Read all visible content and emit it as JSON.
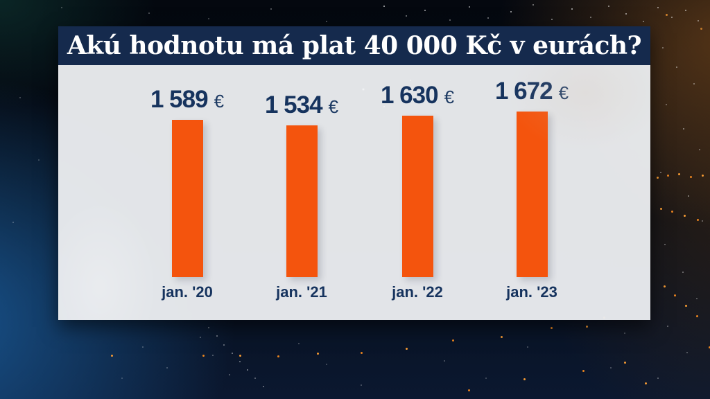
{
  "header": {
    "title": "Akú hodnotu má plat 40 000 Kč v eurách?"
  },
  "chart_data": {
    "type": "bar",
    "title": "Akú hodnotu má plat 40 000 Kč v eurách?",
    "categories": [
      "jan. '20",
      "jan. '21",
      "jan. '22",
      "jan. '23"
    ],
    "values": [
      1589,
      1534,
      1630,
      1672
    ],
    "value_labels": [
      "1 589",
      "1 534",
      "1 630",
      "1 672"
    ],
    "unit": "€",
    "ylim": [
      0,
      2100
    ],
    "grid": "off",
    "legend": "none",
    "bar_color": "#f4540d",
    "label_color": "#16335e",
    "plot_background": "#e9ebee"
  },
  "colors": {
    "title_bar_navy": "#152a4d",
    "title_text": "#ffffff",
    "accent_orange": "#f4540d",
    "value_text_navy": "#16335e",
    "background_dark": "#060d18",
    "background_blue_glow": "#1b5fa0",
    "background_warm_glow": "#804c1a",
    "particle_orange": "#f59a33"
  }
}
